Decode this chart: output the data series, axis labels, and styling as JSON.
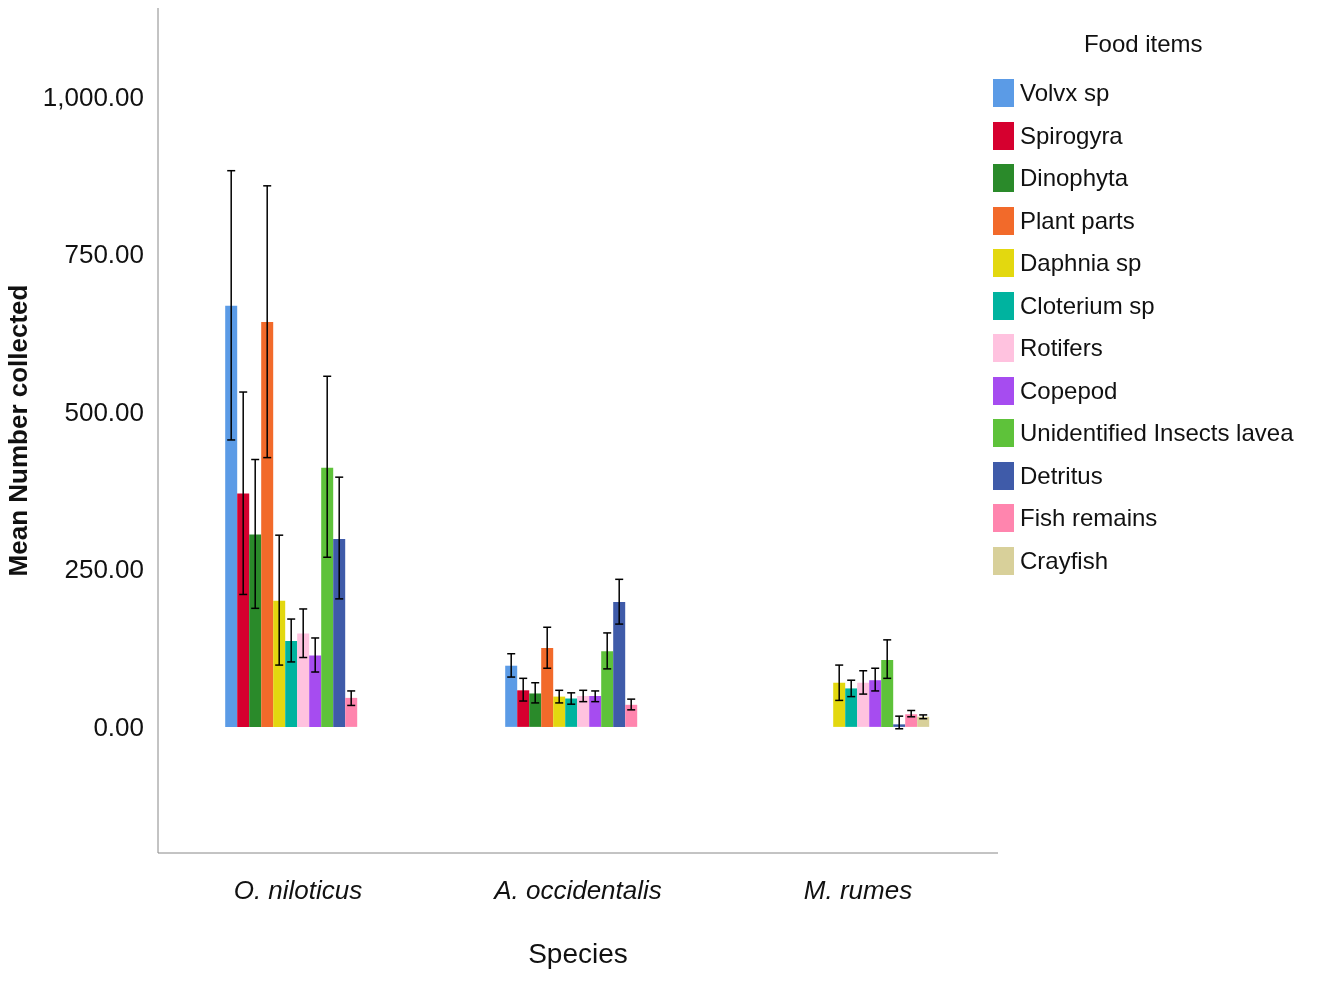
{
  "chart_data": {
    "type": "bar",
    "xlabel": "Species",
    "ylabel": "Mean Number collected",
    "legend_title": "Food items",
    "legend": "right",
    "categories": [
      "O. niloticus",
      "A. occidentalis",
      "M. rumes"
    ],
    "ylim": [
      -200,
      1140
    ],
    "yticks": [
      {
        "value": 0,
        "label": "0.00"
      },
      {
        "value": 250,
        "label": "250.00"
      },
      {
        "value": 500,
        "label": "500.00"
      },
      {
        "value": 750,
        "label": "750.00"
      },
      {
        "value": 1000,
        "label": "1,000.00"
      }
    ],
    "series": [
      {
        "name": "Volvx sp",
        "color": "#5b9be6",
        "values": [
          668,
          97,
          0
        ],
        "errors": [
          [
            455,
            882
          ],
          [
            79,
            116
          ],
          null
        ]
      },
      {
        "name": "Spirogyra",
        "color": "#d6002f",
        "values": [
          370,
          58,
          0
        ],
        "errors": [
          [
            210,
            531
          ],
          [
            41,
            77
          ],
          null
        ]
      },
      {
        "name": "Dinophyta",
        "color": "#2a8a2a",
        "values": [
          305,
          53,
          0
        ],
        "errors": [
          [
            188,
            424
          ],
          [
            38,
            70
          ],
          null
        ]
      },
      {
        "name": "Plant parts",
        "color": "#f26a2a",
        "values": [
          642,
          125,
          0
        ],
        "errors": [
          [
            427,
            858
          ],
          [
            93,
            158
          ],
          null
        ]
      },
      {
        "name": "Daphnia sp",
        "color": "#e3d80f",
        "values": [
          200,
          48,
          70
        ],
        "errors": [
          [
            98,
            304
          ],
          [
            38,
            58
          ],
          [
            42,
            98
          ]
        ]
      },
      {
        "name": "Cloterium sp",
        "color": "#00b39f",
        "values": [
          136,
          45,
          61
        ],
        "errors": [
          [
            103,
            171
          ],
          [
            36,
            54
          ],
          [
            48,
            74
          ]
        ]
      },
      {
        "name": "Rotifers",
        "color": "#ffc2df",
        "values": [
          148,
          49,
          70
        ],
        "errors": [
          [
            110,
            187
          ],
          [
            40,
            58
          ],
          [
            52,
            89
          ]
        ]
      },
      {
        "name": "Copepod",
        "color": "#a64cf0",
        "values": [
          113,
          49,
          74
        ],
        "errors": [
          [
            87,
            141
          ],
          [
            40,
            57
          ],
          [
            57,
            93
          ]
        ]
      },
      {
        "name": "Unidentified Insects lavea",
        "color": "#5ec23a",
        "values": [
          411,
          120,
          106
        ],
        "errors": [
          [
            269,
            556
          ],
          [
            92,
            149
          ],
          [
            77,
            138
          ]
        ]
      },
      {
        "name": "Detritus",
        "color": "#3f5ba9",
        "values": [
          298,
          198,
          4
        ],
        "errors": [
          [
            203,
            396
          ],
          [
            163,
            234
          ],
          [
            -3,
            17
          ]
        ]
      },
      {
        "name": "Fish remains",
        "color": "#ff85ae",
        "values": [
          46,
          35,
          20
        ],
        "errors": [
          [
            34,
            57
          ],
          [
            27,
            44
          ],
          [
            16,
            26
          ]
        ]
      },
      {
        "name": "Crayfish",
        "color": "#d8d09a",
        "values": [
          0,
          0,
          16
        ],
        "errors": [
          null,
          null,
          [
            13,
            19
          ]
        ]
      }
    ]
  }
}
